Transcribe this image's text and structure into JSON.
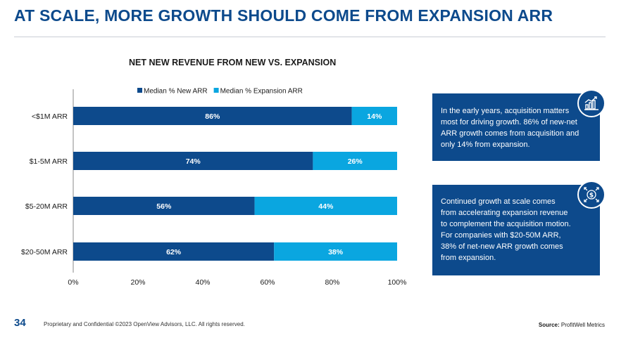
{
  "slide": {
    "title": "AT SCALE, MORE GROWTH SHOULD COME FROM EXPANSION ARR"
  },
  "callouts": [
    {
      "text": "In the early years, acquisition matters\nmost for driving growth. 86% of new-net\nARR growth comes from acquisition and\nonly 14% from expansion.",
      "icon": "growth-chart-icon"
    },
    {
      "text": "Continued growth at scale comes\nfrom accelerating expansion revenue\nto complement the acquisition motion.\nFor companies with $20-50M ARR,\n38% of net-new ARR growth comes\nfrom expansion.",
      "icon": "dollar-expand-icon"
    }
  ],
  "footer": {
    "page_number": "34",
    "confidential": "Proprietary and Confidential ©2023 OpenView Advisors, LLC. All rights reserved.",
    "source_label": "Source:",
    "source_value": "ProfitWell Metrics"
  },
  "colors": {
    "new_arr": "#0d4a8c",
    "expansion_arr": "#0aa6e0",
    "callout_bg": "#0d4a8c",
    "title": "#0d4a8c"
  },
  "chart_data": {
    "type": "bar",
    "orientation": "horizontal",
    "stacked": true,
    "title": "NET NEW REVENUE FROM NEW VS. EXPANSION",
    "categories": [
      "<$1M ARR",
      "$1-5M ARR",
      "$5-20M ARR",
      "$20-50M ARR"
    ],
    "series": [
      {
        "name": "Median % New ARR",
        "values": [
          86,
          74,
          56,
          62
        ],
        "labels": [
          "86%",
          "74%",
          "56%",
          "62%"
        ]
      },
      {
        "name": "Median % Expansion ARR",
        "values": [
          14,
          26,
          44,
          38
        ],
        "labels": [
          "14%",
          "26%",
          "44%",
          "38%"
        ]
      }
    ],
    "xlim": [
      0,
      100
    ],
    "x_ticks": [
      "0%",
      "20%",
      "40%",
      "60%",
      "80%",
      "100%"
    ],
    "legend": "top",
    "grid": false
  }
}
